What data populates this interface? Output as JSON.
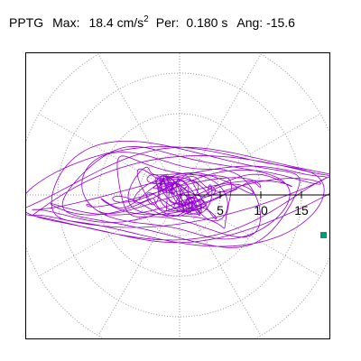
{
  "header": {
    "station": "PPTG",
    "max_label": "Max:",
    "max_value": "18.4",
    "max_unit": "cm/s",
    "max_unit_exp": "2",
    "per_label": "Per:",
    "per_value": "0.180 s",
    "ang_label": "Ang:",
    "ang_value": "-15.6"
  },
  "chart_data": {
    "type": "scatter",
    "title": "",
    "xlabel": "",
    "ylabel": "",
    "polar_rings": [
      5,
      10,
      15,
      20
    ],
    "radial_spokes_deg": [
      0,
      30,
      60,
      90,
      120,
      150,
      180,
      210,
      240,
      270,
      300,
      330
    ],
    "tick_labels": [
      "5",
      "10",
      "15"
    ],
    "grid": true,
    "max_amplitude": 18.4,
    "max_angle_deg": -15.6,
    "units": "cm/s2",
    "colors": {
      "trace": "#9400d3",
      "grid": "#999999",
      "axis": "#000000",
      "marker": "#009a7a"
    }
  }
}
